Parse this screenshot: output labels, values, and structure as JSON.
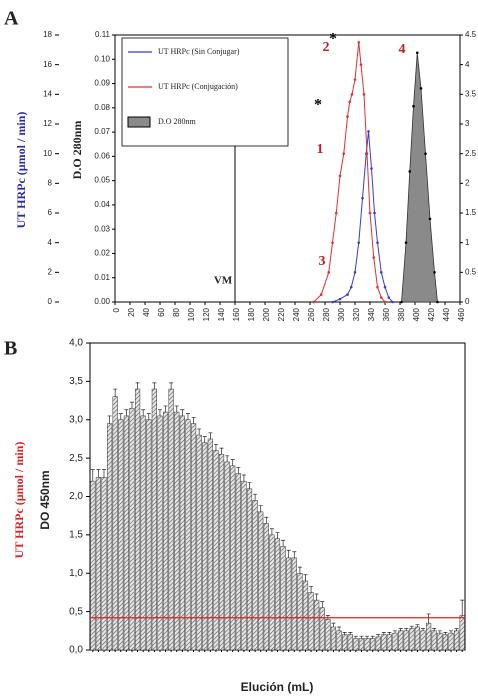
{
  "chart_data": [
    {
      "type": "line",
      "panel": "A",
      "ylabel": "UT HRPc (µmol / min)",
      "y3label": "D.O 280nm",
      "xlim": [
        0,
        460
      ],
      "xticks": [
        0,
        20,
        40,
        60,
        80,
        100,
        120,
        140,
        160,
        180,
        200,
        220,
        240,
        260,
        280,
        300,
        320,
        340,
        360,
        380,
        400,
        420,
        440,
        460
      ],
      "ylim": [
        0,
        18
      ],
      "yticks": [
        0,
        2,
        4,
        6,
        8,
        10,
        12,
        14,
        16,
        18
      ],
      "y3lim": [
        0,
        0.11
      ],
      "y3ticks": [
        {
          "value": 0,
          "label": "0.00"
        },
        {
          "value": 0.01,
          "label": "0.01"
        },
        {
          "value": 0.02,
          "label": "0.02"
        },
        {
          "value": 0.03,
          "label": "0.03"
        },
        {
          "value": 0.04,
          "label": "0.04"
        },
        {
          "value": 0.05,
          "label": "0.05"
        },
        {
          "value": 0.06,
          "label": "0.06"
        },
        {
          "value": 0.07,
          "label": "0.07"
        },
        {
          "value": 0.08,
          "label": "0.08"
        },
        {
          "value": 0.09,
          "label": "0.09"
        },
        {
          "value": 0.1,
          "label": "0.10"
        },
        {
          "value": 0.11,
          "label": "0.11"
        }
      ],
      "y2lim": [
        0,
        4.5
      ],
      "y2ticks": [
        0,
        0.5,
        1,
        1.5,
        2,
        2.5,
        3,
        3.5,
        4,
        4.5
      ],
      "series": [
        {
          "name": "UT HRPc (Sin Conjugar)",
          "color": "#3b3bd0",
          "axis": "y",
          "style": "line",
          "x": [
            290,
            300,
            310,
            315,
            320,
            325,
            330,
            335,
            338,
            342,
            346,
            350,
            355,
            360,
            365,
            370
          ],
          "values": [
            0,
            0.2,
            0.5,
            1,
            2,
            4,
            7,
            10,
            11.5,
            9,
            6,
            4,
            2,
            1,
            0.3,
            0
          ]
        },
        {
          "name": "UT HRPc (Conjugación)",
          "color": "#e03030",
          "axis": "y",
          "style": "line",
          "x": [
            265,
            275,
            285,
            290,
            295,
            300,
            305,
            310,
            313,
            316,
            320,
            325,
            328,
            332,
            336,
            340,
            345,
            350,
            355,
            360
          ],
          "values": [
            0,
            0.5,
            2,
            4,
            6,
            8.5,
            10,
            12.5,
            13.5,
            14,
            15,
            17.5,
            16,
            14,
            10,
            6,
            3,
            1,
            0.3,
            0
          ]
        },
        {
          "name": "D.O 280nm",
          "color": "#8a8a8a",
          "axis": "y2",
          "style": "area",
          "x": [
            382,
            388,
            393,
            398,
            403,
            408,
            414,
            420,
            426,
            430
          ],
          "values": [
            0,
            1,
            2.2,
            3.3,
            4.2,
            3.6,
            2.5,
            1.4,
            0.5,
            0
          ]
        }
      ],
      "vm_label": "VM",
      "vm_x": 160,
      "annotations": [
        "1",
        "2",
        "3",
        "4",
        "*",
        "*"
      ]
    },
    {
      "type": "bar",
      "panel": "B",
      "ylabel": "UT HRPc (µmol / min)",
      "ylabel2": "DO 450nm",
      "xlabel": "Elución (mL)",
      "ylim": [
        0,
        4
      ],
      "yticks": [
        {
          "value": 0,
          "label": "0,0"
        },
        {
          "value": 0.5,
          "label": "0,5"
        },
        {
          "value": 1,
          "label": "1,0"
        },
        {
          "value": 1.5,
          "label": "1,5"
        },
        {
          "value": 2,
          "label": "2,0"
        },
        {
          "value": 2.5,
          "label": "2,5"
        },
        {
          "value": 3,
          "label": "3,0"
        },
        {
          "value": 3.5,
          "label": "3,5"
        },
        {
          "value": 4,
          "label": "4,0"
        }
      ],
      "color": "#555555",
      "threshold": 0.42,
      "threshold_color": "#e02020",
      "categories": [
        null,
        null,
        null,
        null,
        null,
        null,
        null,
        null,
        null,
        null,
        null,
        null,
        null,
        null,
        null,
        null,
        null,
        null,
        null,
        null,
        null,
        null,
        null,
        null,
        null,
        null,
        null,
        null,
        null,
        null,
        null,
        null,
        null,
        null,
        null,
        null,
        null,
        null,
        null,
        null,
        null,
        null,
        null,
        null,
        null,
        null,
        null,
        null,
        null,
        null,
        null,
        null,
        null,
        null,
        null,
        null,
        null,
        null,
        null,
        null,
        null,
        null,
        null,
        null,
        null,
        null,
        null
      ],
      "values": [
        2.2,
        2.25,
        2.25,
        2.95,
        3.3,
        3.0,
        3.05,
        3.15,
        3.4,
        3.05,
        3.0,
        3.4,
        3.05,
        3.1,
        3.4,
        3.1,
        3.05,
        3.0,
        2.95,
        2.8,
        2.7,
        2.75,
        2.6,
        2.55,
        2.45,
        2.4,
        2.3,
        2.2,
        2.1,
        1.95,
        1.8,
        1.65,
        1.5,
        1.45,
        1.35,
        1.2,
        1.2,
        1.0,
        0.9,
        0.75,
        0.65,
        0.55,
        0.4,
        0.3,
        0.25,
        0.2,
        0.2,
        0.15,
        0.15,
        0.15,
        0.15,
        0.17,
        0.2,
        0.2,
        0.22,
        0.25,
        0.25,
        0.28,
        0.3,
        0.25,
        0.35,
        0.25,
        0.22,
        0.2,
        0.22,
        0.25,
        0.45
      ],
      "errors": [
        0.15,
        0.1,
        0.1,
        0.1,
        0.1,
        0.08,
        0.08,
        0.08,
        0.08,
        0.08,
        0.08,
        0.08,
        0.08,
        0.08,
        0.08,
        0.08,
        0.08,
        0.08,
        0.08,
        0.08,
        0.08,
        0.08,
        0.08,
        0.08,
        0.08,
        0.08,
        0.08,
        0.08,
        0.08,
        0.08,
        0.08,
        0.08,
        0.08,
        0.08,
        0.08,
        0.1,
        0.08,
        0.08,
        0.08,
        0.08,
        0.08,
        0.08,
        0.05,
        0.05,
        0.05,
        0.03,
        0.03,
        0.03,
        0.03,
        0.03,
        0.03,
        0.03,
        0.03,
        0.03,
        0.03,
        0.03,
        0.03,
        0.03,
        0.03,
        0.03,
        0.12,
        0.03,
        0.03,
        0.03,
        0.03,
        0.03,
        0.2
      ]
    }
  ]
}
